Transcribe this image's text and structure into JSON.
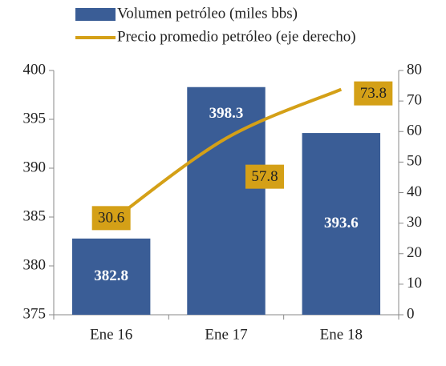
{
  "chart_data": {
    "type": "bar_line",
    "categories": [
      "Ene 16",
      "Ene 17",
      "Ene 18"
    ],
    "series": [
      {
        "name": "Volumen petróleo (miles bbs)",
        "type": "bar",
        "color": "#3a5d96",
        "values": [
          382.8,
          398.3,
          393.6
        ]
      },
      {
        "name": "Precio promedio petróleo (eje derecho)",
        "type": "line",
        "axis": "y2",
        "color": "#d4a017",
        "values": [
          30.6,
          57.8,
          73.8
        ]
      }
    ],
    "ylim": [
      375,
      400
    ],
    "yticks": [
      375,
      380,
      385,
      390,
      395,
      400
    ],
    "y2lim": [
      0,
      80
    ],
    "y2ticks": [
      0,
      10,
      20,
      30,
      40,
      50,
      60,
      70,
      80
    ],
    "legend": "top"
  }
}
